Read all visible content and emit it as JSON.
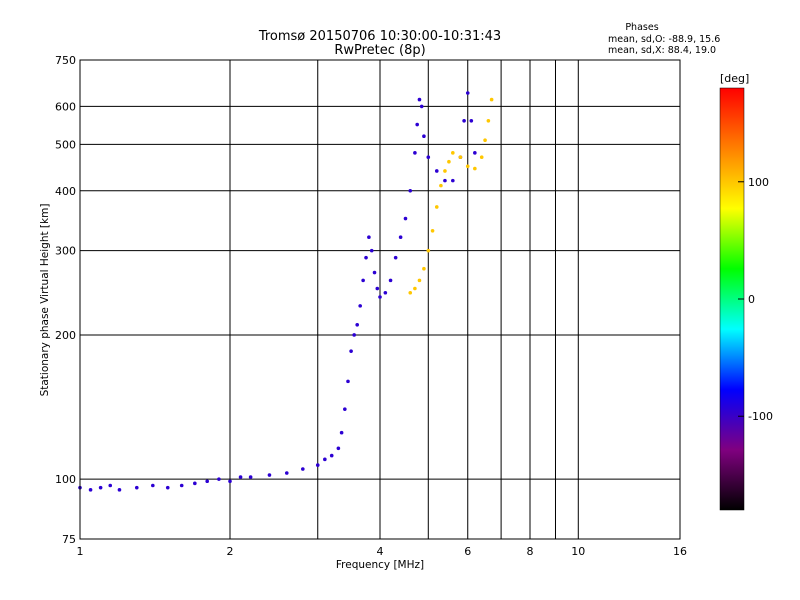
{
  "chart_data": {
    "type": "scatter",
    "title": "Tromsø 20150706 10:30:00-10:31:43",
    "subtitle": "RwPretec (8p)",
    "xlabel": "Frequency [MHz]",
    "ylabel": "Stationary phase Virtual Height [km]",
    "x_scale": "log",
    "y_scale": "log",
    "xlim": [
      1,
      16
    ],
    "ylim": [
      75,
      750
    ],
    "x_ticks": [
      1,
      2,
      4,
      6,
      8,
      10,
      16
    ],
    "x_tick_labels": [
      "1",
      "2",
      "4",
      "6",
      "8",
      "10",
      "16"
    ],
    "x_minor_gridlines": [
      3,
      5,
      7,
      9
    ],
    "y_ticks": [
      75,
      100,
      200,
      300,
      400,
      500,
      600,
      750
    ],
    "y_tick_labels": [
      "75",
      "100",
      "200",
      "300",
      "400",
      "500",
      "600",
      "750"
    ],
    "grid": true,
    "legend": {
      "title": "Phases",
      "lines": [
        "mean, sd,O: -88.9, 15.6",
        "mean, sd,X: 88.4, 19.0"
      ],
      "placement": "top-right"
    },
    "colorbar": {
      "label": "[deg]",
      "range": [
        -180,
        180
      ],
      "ticks": [
        100,
        0,
        -100
      ],
      "tick_labels": [
        "100",
        "0",
        "-100"
      ],
      "colors": [
        "#ff0000",
        "#ff8000",
        "#ffff00",
        "#00ff00",
        "#00ffff",
        "#0000ff",
        "#800080",
        "#000000"
      ]
    },
    "series": [
      {
        "phase_deg": -95,
        "points": [
          [
            1.0,
            96
          ],
          [
            1.05,
            95
          ],
          [
            1.1,
            96
          ],
          [
            1.15,
            97
          ],
          [
            1.2,
            95
          ],
          [
            1.3,
            96
          ],
          [
            1.4,
            97
          ],
          [
            1.5,
            96
          ],
          [
            1.6,
            97
          ],
          [
            1.7,
            98
          ],
          [
            1.8,
            99
          ],
          [
            1.9,
            100
          ],
          [
            2.0,
            99
          ],
          [
            2.1,
            101
          ],
          [
            2.2,
            101
          ],
          [
            2.4,
            102
          ],
          [
            2.6,
            103
          ],
          [
            2.8,
            105
          ],
          [
            3.0,
            107
          ],
          [
            3.1,
            110
          ],
          [
            3.2,
            112
          ],
          [
            3.3,
            116
          ],
          [
            3.35,
            125
          ],
          [
            3.4,
            140
          ],
          [
            3.45,
            160
          ],
          [
            3.5,
            185
          ],
          [
            3.55,
            200
          ],
          [
            3.6,
            210
          ],
          [
            3.65,
            230
          ],
          [
            3.7,
            260
          ],
          [
            3.75,
            290
          ],
          [
            3.8,
            320
          ],
          [
            3.85,
            300
          ],
          [
            3.9,
            270
          ],
          [
            3.95,
            250
          ],
          [
            4.0,
            240
          ],
          [
            4.1,
            245
          ],
          [
            4.2,
            260
          ],
          [
            4.3,
            290
          ],
          [
            4.4,
            320
          ],
          [
            4.5,
            350
          ],
          [
            4.6,
            400
          ],
          [
            4.7,
            480
          ],
          [
            4.75,
            550
          ],
          [
            4.8,
            620
          ],
          [
            4.85,
            600
          ],
          [
            4.9,
            520
          ],
          [
            5.0,
            470
          ],
          [
            5.2,
            440
          ],
          [
            5.4,
            420
          ],
          [
            5.6,
            420
          ],
          [
            5.8,
            470
          ],
          [
            5.9,
            560
          ],
          [
            6.0,
            640
          ],
          [
            6.1,
            560
          ],
          [
            6.2,
            480
          ]
        ]
      },
      {
        "phase_deg": 100,
        "points": [
          [
            4.6,
            245
          ],
          [
            4.7,
            250
          ],
          [
            4.8,
            260
          ],
          [
            4.9,
            275
          ],
          [
            5.0,
            300
          ],
          [
            5.1,
            330
          ],
          [
            5.2,
            370
          ],
          [
            5.3,
            410
          ],
          [
            5.4,
            440
          ],
          [
            5.5,
            460
          ],
          [
            5.6,
            480
          ],
          [
            5.8,
            470
          ],
          [
            6.0,
            450
          ],
          [
            6.2,
            445
          ],
          [
            6.4,
            470
          ],
          [
            6.5,
            510
          ],
          [
            6.6,
            560
          ],
          [
            6.7,
            620
          ]
        ]
      }
    ]
  }
}
